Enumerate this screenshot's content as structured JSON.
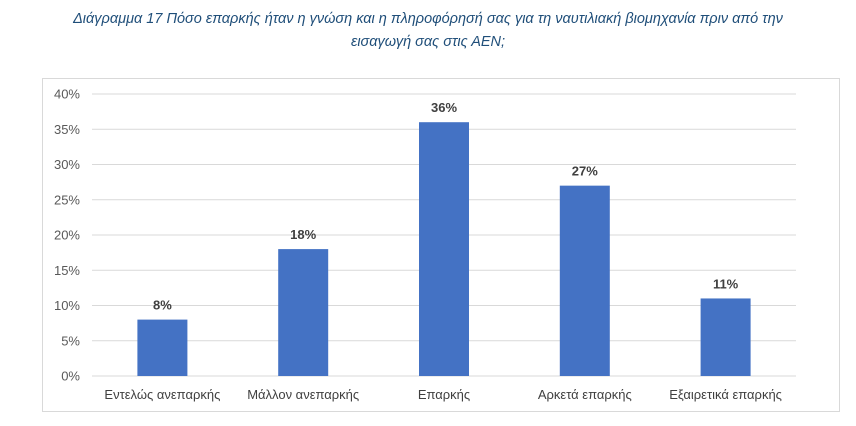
{
  "caption": {
    "line1": "Διάγραμμα 17 Πόσο επαρκής ήταν η γνώση και η πληροφόρησή σας για τη ναυτιλιακή βιομηχανία πριν από την",
    "line2": "εισαγωγή σας στις ΑΕΝ;"
  },
  "chart_data": {
    "type": "bar",
    "title": "",
    "xlabel": "",
    "ylabel": "",
    "categories": [
      "Εντελώς ανεπαρκής",
      "Μάλλον ανεπαρκής",
      "Επαρκής",
      "Αρκετά επαρκής",
      "Εξαιρετικά επαρκής"
    ],
    "values": [
      8,
      18,
      36,
      27,
      11
    ],
    "value_labels": [
      "8%",
      "18%",
      "36%",
      "27%",
      "11%"
    ],
    "ylim": [
      0,
      40
    ],
    "yticks": [
      0,
      5,
      10,
      15,
      20,
      25,
      30,
      35,
      40
    ],
    "ytick_labels": [
      "0%",
      "5%",
      "10%",
      "15%",
      "20%",
      "25%",
      "30%",
      "35%",
      "40%"
    ],
    "grid": true,
    "bar_color": "#4472c4",
    "grid_color": "#d9d9d9"
  }
}
